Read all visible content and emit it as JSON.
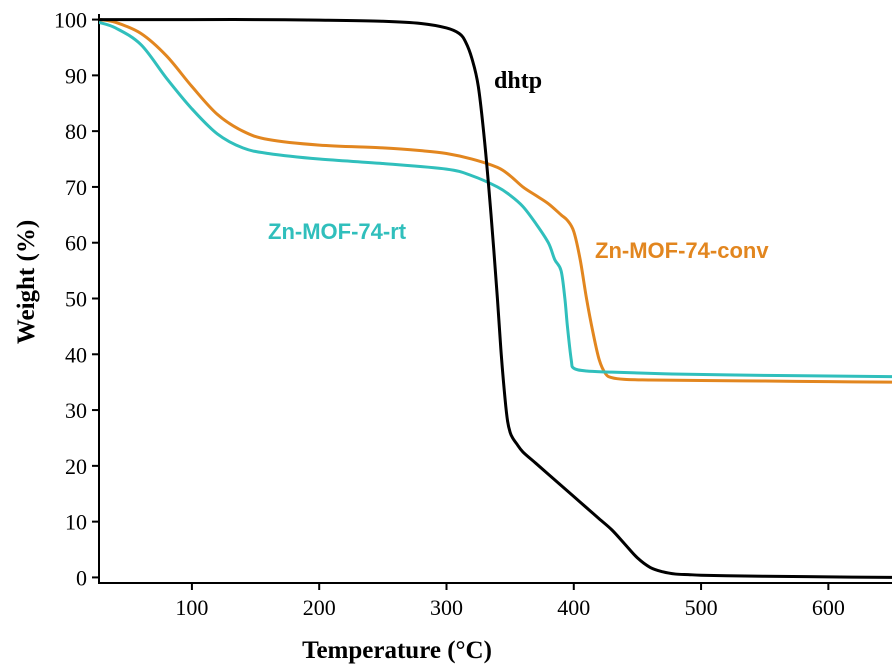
{
  "chart_data": {
    "type": "line",
    "xlabel": "Temperature (°C)",
    "ylabel": "Weight (%)",
    "xlim": [
      27,
      650
    ],
    "ylim": [
      -1,
      101
    ],
    "xticks": [
      100,
      200,
      300,
      400,
      500,
      600
    ],
    "yticks": [
      0,
      10,
      20,
      30,
      40,
      50,
      60,
      70,
      80,
      90,
      100
    ],
    "grid": false,
    "series": [
      {
        "name": "dhtp",
        "color": "#000000",
        "x": [
          27,
          60,
          100,
          150,
          200,
          250,
          280,
          300,
          310,
          315,
          320,
          325,
          330,
          335,
          340,
          343,
          346,
          348,
          350,
          352,
          355,
          360,
          370,
          380,
          390,
          400,
          410,
          420,
          430,
          440,
          450,
          460,
          470,
          480,
          490,
          500,
          520,
          550,
          600,
          650
        ],
        "y": [
          100,
          100,
          100,
          100,
          99.9,
          99.7,
          99.3,
          98.5,
          97.5,
          96,
          93,
          88,
          78,
          65,
          50,
          40,
          32,
          28,
          26,
          25,
          24,
          22.5,
          20.5,
          18.5,
          16.5,
          14.5,
          12.5,
          10.5,
          8.5,
          6,
          3.5,
          1.8,
          1,
          0.6,
          0.5,
          0.4,
          0.3,
          0.2,
          0.1,
          0
        ]
      },
      {
        "name": "Zn-MOF-74-conv",
        "color": "#E2861F",
        "x": [
          27,
          40,
          60,
          80,
          100,
          120,
          140,
          160,
          200,
          250,
          280,
          300,
          320,
          340,
          350,
          360,
          370,
          380,
          390,
          395,
          400,
          405,
          410,
          415,
          420,
          425,
          430,
          440,
          460,
          500,
          550,
          600,
          650
        ],
        "y": [
          100,
          99.5,
          97.5,
          93.5,
          88,
          83,
          80,
          78.5,
          77.5,
          77,
          76.5,
          76,
          75,
          73.5,
          72,
          70,
          68.5,
          67,
          65,
          64,
          62,
          57,
          50,
          44,
          39,
          36.5,
          35.8,
          35.5,
          35.4,
          35.3,
          35.2,
          35.1,
          35
        ]
      },
      {
        "name": "Zn-MOF-74-rt",
        "color": "#30BFBC",
        "x": [
          27,
          40,
          60,
          80,
          100,
          120,
          140,
          160,
          200,
          250,
          300,
          320,
          340,
          350,
          360,
          370,
          380,
          385,
          390,
          393,
          395,
          398,
          400,
          410,
          430,
          470,
          520,
          600,
          650
        ],
        "y": [
          99.5,
          98.5,
          95.5,
          89.5,
          84,
          79.5,
          77,
          76,
          75,
          74.2,
          73.2,
          72,
          70,
          68.5,
          66.5,
          63.5,
          60,
          57,
          55,
          50,
          45,
          39,
          37.5,
          37,
          36.8,
          36.5,
          36.3,
          36.1,
          36
        ]
      }
    ],
    "annotations": [
      "dhtp",
      "Zn-MOF-74-rt",
      "Zn-MOF-74-conv"
    ]
  }
}
